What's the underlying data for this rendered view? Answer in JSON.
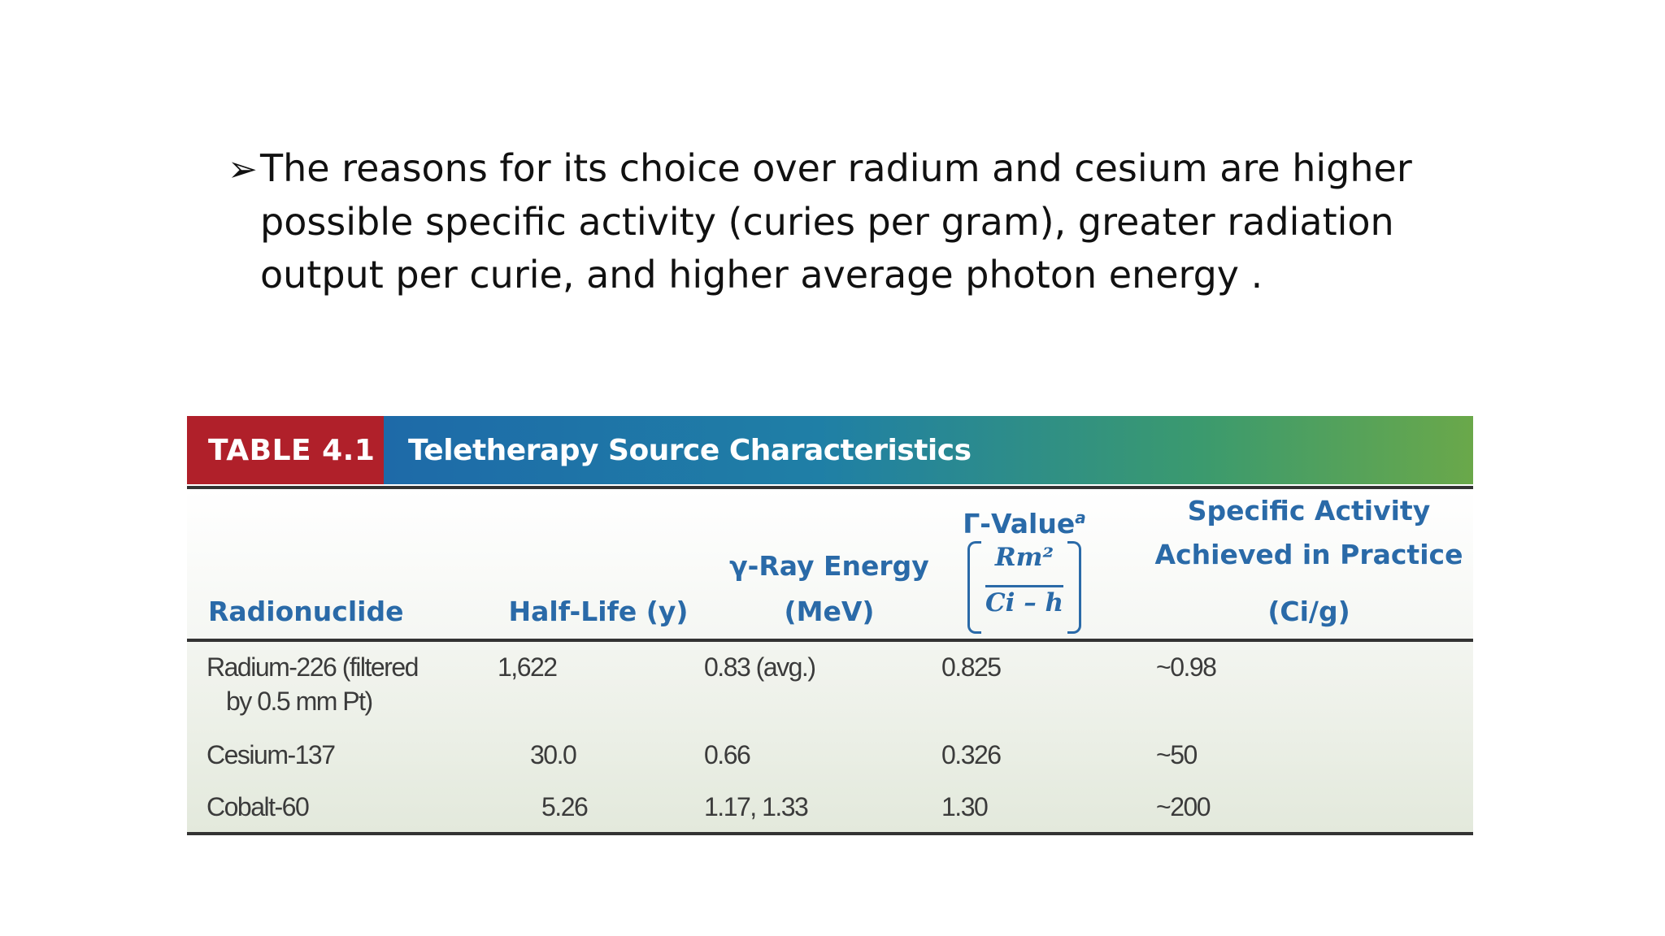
{
  "bullet": {
    "marker": "➢",
    "lines": [
      "The reasons for its choice over radium and cesium are higher",
      "possible specific activity (curies per gram), greater radiation",
      "output per curie, and higher average photon energy ."
    ]
  },
  "table": {
    "number": "TABLE 4.1",
    "title": "Teletherapy Source Characteristics",
    "headers": {
      "radionuclide": "Radionuclide",
      "half_life": "Half-Life (y)",
      "gamma_energy_line1": "γ-Ray Energy",
      "gamma_energy_line2": "(MeV)",
      "gamma_value_label": "Γ-Value",
      "gamma_value_sup": "a",
      "gamma_value_numerator": "Rm²",
      "gamma_value_denominator": "Ci – h",
      "specific_activity_line1": "Specific Activity",
      "specific_activity_line2": "Achieved in Practice",
      "specific_activity_line3": "(Ci/g)"
    },
    "rows": [
      {
        "radionuclide": "Radium-226 (filtered",
        "radionuclide_line2": "by 0.5 mm Pt)",
        "half_life": "1,622",
        "gamma_energy": "0.83 (avg.)",
        "gamma_value": "0.825",
        "specific_activity": "~0.98"
      },
      {
        "radionuclide": "Cesium-137",
        "half_life": "30.0",
        "gamma_energy": "0.66",
        "gamma_value": "0.326",
        "specific_activity": "~50"
      },
      {
        "radionuclide": "Cobalt-60",
        "half_life": "5.26",
        "gamma_energy": "1.17, 1.33",
        "gamma_value": "1.30",
        "specific_activity": "~200"
      }
    ]
  },
  "colors": {
    "table_number_bg": "#b0202a",
    "title_gradient_start": "#1e6aa8",
    "title_gradient_end": "#6aa84a",
    "header_text": "#2a6aa8"
  }
}
